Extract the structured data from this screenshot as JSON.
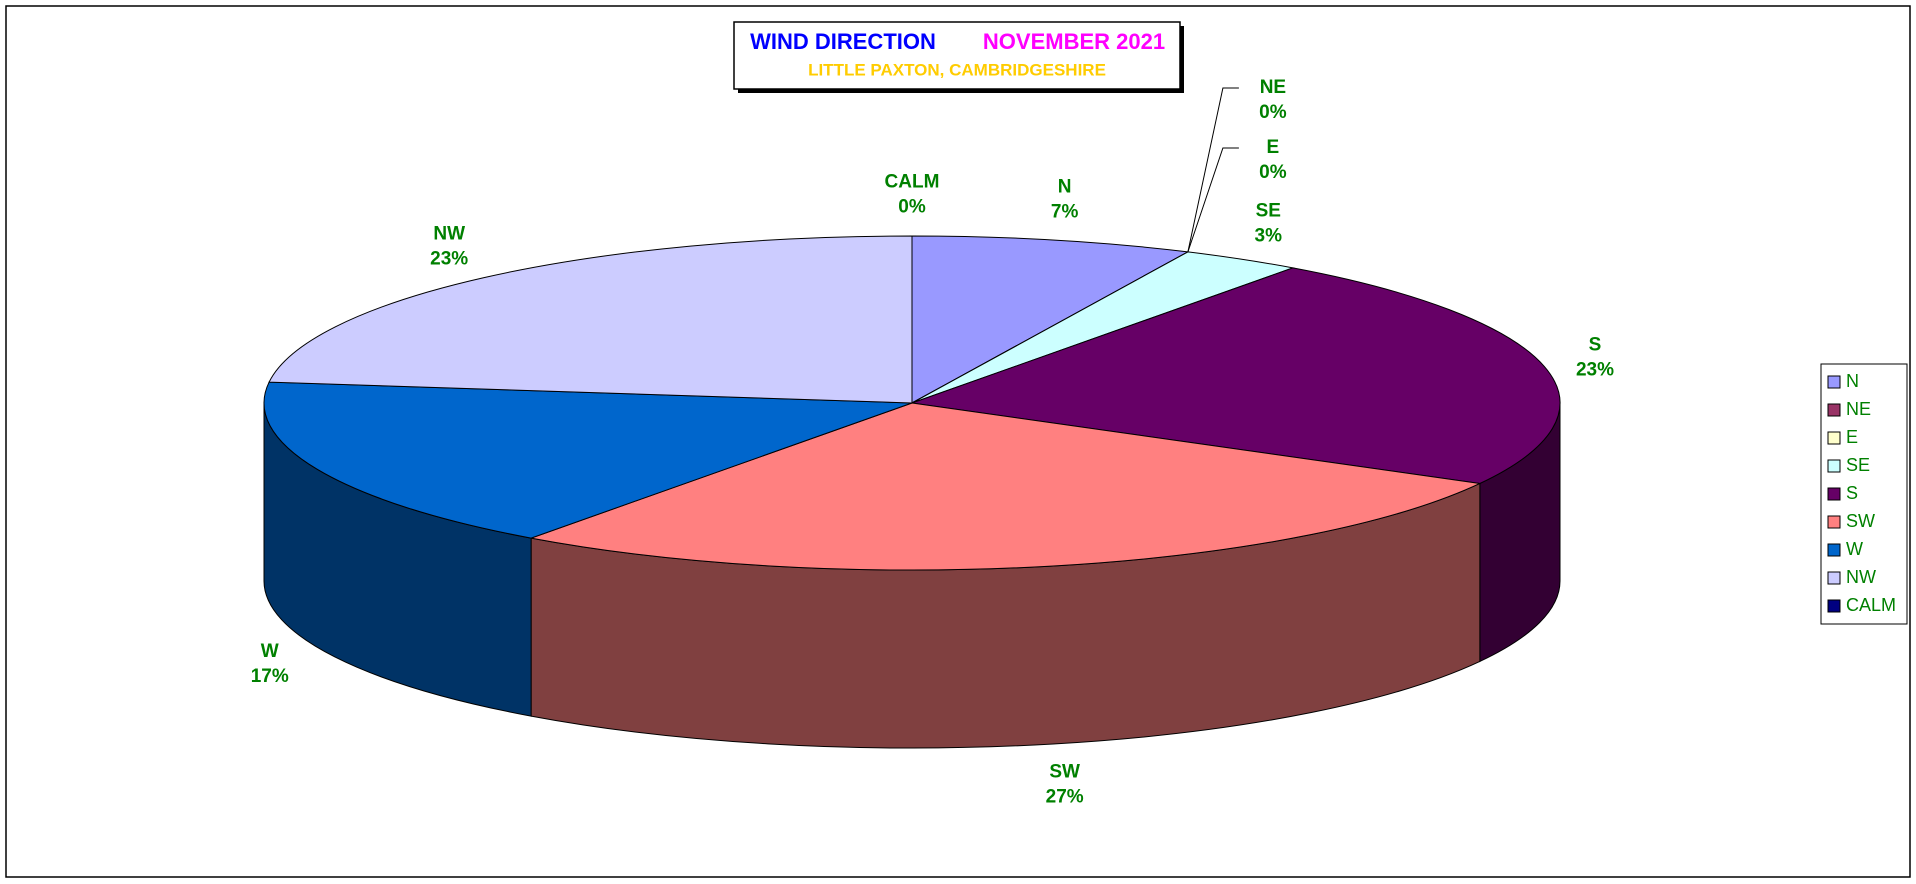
{
  "chart_data": {
    "type": "pie3d",
    "title": "WIND DIRECTION",
    "period": "NOVEMBER 2021",
    "subtitle": "LITTLE PAXTON, CAMBRIDGESHIRE",
    "categories": [
      "N",
      "NE",
      "E",
      "SE",
      "S",
      "SW",
      "W",
      "NW",
      "CALM"
    ],
    "values": [
      7,
      0,
      0,
      3,
      23,
      27,
      17,
      23,
      0
    ],
    "value_labels": [
      "7%",
      "0%",
      "0%",
      "3%",
      "23%",
      "27%",
      "17%",
      "23%",
      "0%"
    ],
    "colors": [
      "#9999ff",
      "#993366",
      "#ffffcc",
      "#ccffff",
      "#660066",
      "#ff8080",
      "#0066cc",
      "#ccccff",
      "#000080"
    ],
    "legend": "right"
  }
}
